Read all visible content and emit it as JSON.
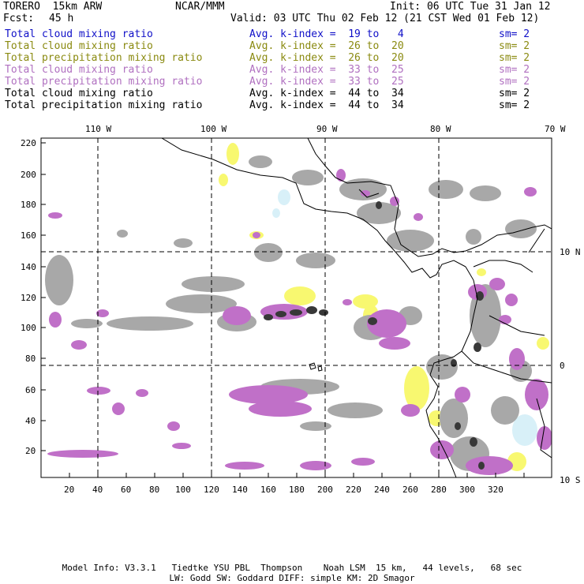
{
  "header": {
    "model": "TORERO  15km ARW",
    "org": "NCAR/MMM",
    "init": "Init: 06 UTC Tue 31 Jan 12",
    "fcst_label": "Fcst:",
    "fcst_value": "45 h",
    "valid": "Valid: 03 UTC Thu 02 Feb 12 (21 CST Wed 01 Feb 12)"
  },
  "legend": [
    {
      "field": "Total cloud mixing ratio",
      "stat": "Avg. k-index =  19 to   4",
      "sm": "sm= 2",
      "color": "#1010c8"
    },
    {
      "field": "Total cloud mixing ratio",
      "stat": "Avg. k-index =  26 to  20",
      "sm": "sm= 2",
      "color": "#8a8a10"
    },
    {
      "field": "Total precipitation mixing ratio",
      "stat": "Avg. k-index =  26 to  20",
      "sm": "sm= 2",
      "color": "#8a8a10"
    },
    {
      "field": "Total cloud mixing ratio",
      "stat": "Avg. k-index =  33 to  25",
      "sm": "sm= 2",
      "color": "#b070c0"
    },
    {
      "field": "Total precipitation mixing ratio",
      "stat": "Avg. k-index =  33 to  25",
      "sm": "sm= 2",
      "color": "#b070c0"
    },
    {
      "field": "Total cloud mixing ratio",
      "stat": "Avg. k-index =  44 to  34",
      "sm": "sm= 2",
      "color": "#000000"
    },
    {
      "field": "Total precipitation mixing ratio",
      "stat": "Avg. k-index =  44 to  34",
      "sm": "sm= 2",
      "color": "#000000"
    }
  ],
  "axes": {
    "top_lon_labels": [
      "110 W",
      "100 W",
      "90 W",
      "80 W",
      "70 W"
    ],
    "right_lat_labels": [
      "10 N",
      "0",
      "10 S"
    ],
    "x_ticks": [
      "20",
      "40",
      "60",
      "80",
      "100",
      "120",
      "140",
      "160",
      "180",
      "200",
      "220",
      "240",
      "260",
      "280",
      "300",
      "320"
    ],
    "y_ticks": [
      "220",
      "200",
      "180",
      "160",
      "140",
      "120",
      "100",
      "80",
      "60",
      "40",
      "20"
    ]
  },
  "colors": {
    "cloud_low": "#f8f870",
    "cloud_mid": "#c070c8",
    "cloud_high": "#a8a8a8",
    "cloud_core": "#383838",
    "light_blue": "#d8f0f8"
  },
  "footer": {
    "line1": "Model Info: V3.3.1   Tiedtke YSU PBL  Thompson    Noah LSM  15 km,   44 levels,   68 sec",
    "line2": "LW: Godd SW: Goddard DIFF: simple KM: 2D Smagor"
  }
}
